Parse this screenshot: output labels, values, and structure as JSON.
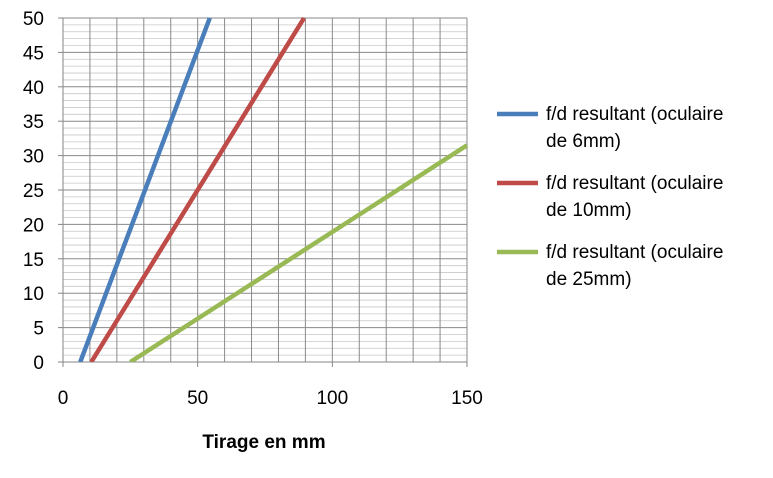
{
  "chart_data": {
    "type": "line",
    "title": "",
    "xlabel": "Tirage en mm",
    "ylabel": "",
    "xlim": [
      0,
      150
    ],
    "ylim": [
      0,
      50
    ],
    "x_ticks": [
      "0",
      "50",
      "100",
      "150"
    ],
    "y_ticks": [
      "0",
      "5",
      "10",
      "15",
      "20",
      "25",
      "30",
      "35",
      "40",
      "45",
      "50"
    ],
    "grid": true,
    "legend_position": "right",
    "series": [
      {
        "name_lines": [
          "f/d resultant (oculaire",
          "de 6mm)"
        ],
        "color": "#4a7ebb",
        "x": [
          6.4,
          54.5
        ],
        "y": [
          0,
          50
        ]
      },
      {
        "name_lines": [
          "f/d resultant (oculaire",
          "de 10mm)"
        ],
        "color": "#be4b48",
        "x": [
          10.5,
          89.5
        ],
        "y": [
          0,
          50
        ]
      },
      {
        "name_lines": [
          " f/d resultant (oculaire",
          "de 25mm)"
        ],
        "color": "#98b954",
        "x": [
          25,
          150
        ],
        "y": [
          0,
          31.5
        ]
      }
    ]
  }
}
